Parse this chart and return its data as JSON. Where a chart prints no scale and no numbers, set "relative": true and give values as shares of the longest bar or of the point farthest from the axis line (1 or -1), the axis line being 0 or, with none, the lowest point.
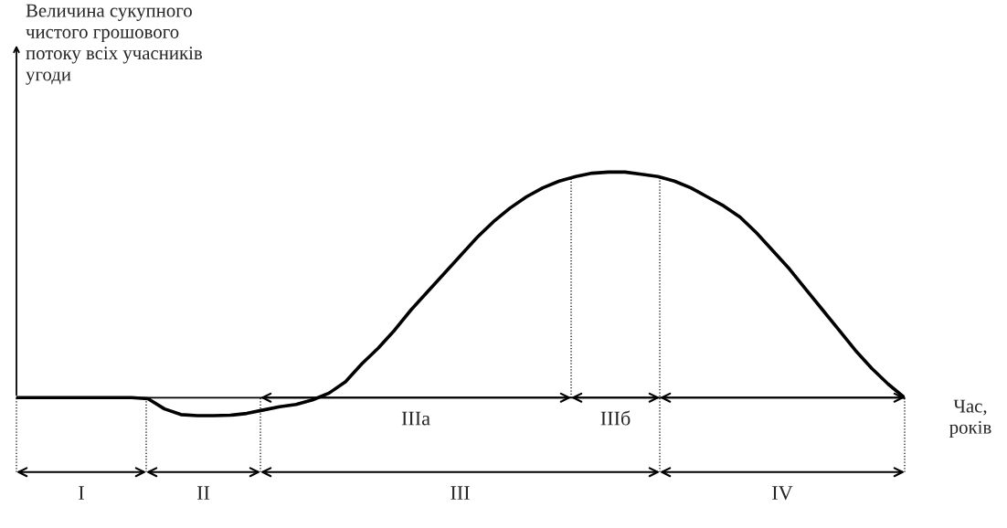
{
  "chart_data": {
    "type": "line",
    "relative": true,
    "color": "#000000",
    "marker": "none",
    "line_style": "solid",
    "ylabel": "Величина сукупного\nчистого грошового\nпотоку всіх учасників\nугоди",
    "xlabel": "Час,\nроків",
    "annotations": [
      "I",
      "II",
      "III",
      "IV",
      "IIIа",
      "IIIб"
    ],
    "categories": [
      null,
      null,
      null,
      null,
      null,
      null,
      null,
      null,
      null,
      null,
      null,
      null,
      null,
      null,
      null,
      null,
      null,
      null,
      null,
      null,
      null,
      null,
      null,
      null,
      null,
      null,
      null,
      null,
      null,
      null,
      null,
      null,
      null,
      null,
      null,
      null,
      null,
      null,
      null,
      null,
      null,
      null,
      null,
      null,
      null,
      null,
      null,
      null,
      null,
      null,
      null,
      null,
      null,
      null,
      null
    ],
    "values": [
      0,
      0,
      0,
      0,
      0,
      0,
      0,
      0,
      -0.005,
      -0.05,
      -0.075,
      -0.08,
      -0.08,
      -0.078,
      -0.07,
      -0.055,
      -0.04,
      -0.03,
      -0.01,
      0.02,
      0.07,
      0.15,
      0.22,
      0.3,
      0.39,
      0.47,
      0.55,
      0.63,
      0.71,
      0.78,
      0.84,
      0.89,
      0.93,
      0.96,
      0.98,
      0.995,
      1.0,
      1.0,
      0.99,
      0.98,
      0.96,
      0.93,
      0.89,
      0.85,
      0.8,
      0.73,
      0.65,
      0.57,
      0.48,
      0.39,
      0.3,
      0.21,
      0.13,
      0.06,
      0
    ]
  }
}
